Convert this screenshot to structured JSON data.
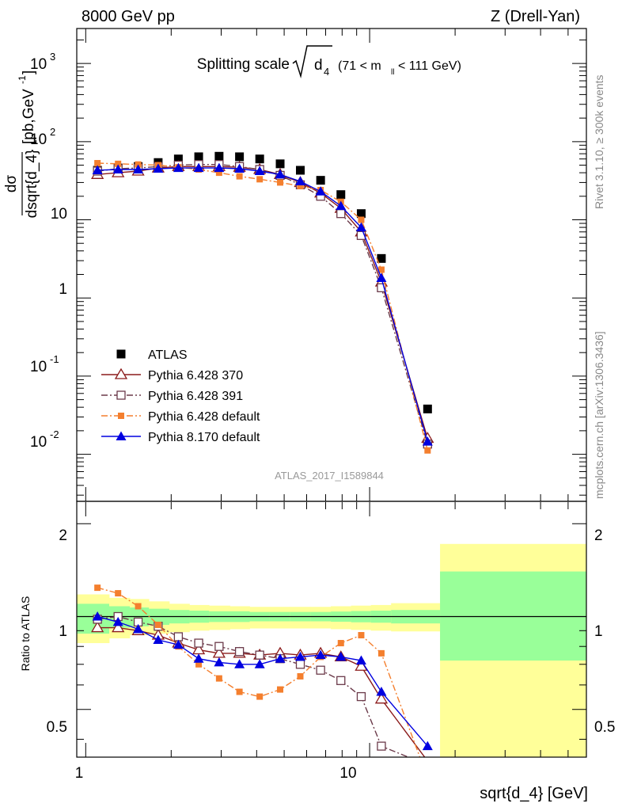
{
  "header": {
    "left": "8000 GeV pp",
    "right": "Z (Drell-Yan)"
  },
  "main_title": {
    "prefix": "Splitting scale",
    "symbol": "d",
    "symbol_sub": "4",
    "range_pre": "(71 < m",
    "range_sub": "ll",
    "range_post": " < 111 GeV)"
  },
  "ylabel": {
    "frac_num": "dσ",
    "frac_den": "dsqrt{d_4}",
    "units": "[pb,GeV",
    "units_sup": "-1",
    "units_close": "]"
  },
  "ratio_ylabel": "Ratio to ATLAS",
  "xlabel": "sqrt{d_4} [GeV]",
  "watermark": "ATLAS_2017_I1589844",
  "side_text": {
    "rivet": "Rivet 3.1.10, ≥ 300k events",
    "mcplots": "mcplots.cern.ch [arXiv:1306.3436]"
  },
  "tick_labels": {
    "main_y": [
      "10",
      "-2",
      "10",
      "-1",
      "1",
      "10",
      "10",
      "2",
      "10",
      "3"
    ],
    "ratio_y": [
      "0.5",
      "1",
      "2"
    ],
    "x": [
      "1",
      "10"
    ]
  },
  "chart_data": [
    {
      "type": "scatter",
      "panel": "main",
      "title": "Splitting scale √d4 (71 < mll < 111 GeV)",
      "xlabel": "sqrt{d_4} [GeV]",
      "ylabel": "dσ/dsqrt{d_4} [pb,GeV-1]",
      "xscale": "log",
      "yscale": "log",
      "xlim": [
        0.93,
        58
      ],
      "ylim": [
        0.0025,
        2800
      ],
      "legend_position": "bottom-left",
      "series": [
        {
          "name": "ATLAS",
          "color": "#000000",
          "marker": "filled-square",
          "line": "none",
          "x": [
            1.1,
            1.3,
            1.53,
            1.8,
            2.12,
            2.5,
            2.95,
            3.48,
            4.1,
            4.84,
            5.7,
            6.72,
            7.92,
            9.34,
            11.0,
            16.0,
            40.0
          ],
          "y": [
            43,
            46,
            48,
            54,
            60,
            64,
            65,
            64,
            60,
            52,
            43,
            32,
            21,
            12,
            3.2,
            0.038,
            null
          ]
        },
        {
          "name": "Pythia 6.428 370",
          "color": "#8b1a1a",
          "marker": "open-triangle",
          "line": "solid",
          "x": [
            1.1,
            1.3,
            1.53,
            1.8,
            2.12,
            2.5,
            2.95,
            3.48,
            4.1,
            4.84,
            5.7,
            6.72,
            7.92,
            9.34,
            11.0,
            16.0,
            40.0
          ],
          "y": [
            38,
            40,
            42,
            46,
            48,
            48,
            48,
            47,
            44,
            38,
            30,
            22,
            14,
            7.0,
            1.6,
            0.016,
            null
          ]
        },
        {
          "name": "Pythia 6.428 391",
          "color": "#6b3a4a",
          "marker": "open-square",
          "line": "dash-dot",
          "x": [
            1.1,
            1.3,
            1.53,
            1.8,
            2.12,
            2.5,
            2.95,
            3.48,
            4.1,
            4.84,
            5.7,
            6.72,
            7.92,
            9.34,
            11.0,
            16.0,
            40.0
          ],
          "y": [
            42,
            45,
            46,
            48,
            50,
            51,
            51,
            48,
            44,
            37,
            28,
            20,
            12,
            6.3,
            1.35,
            0.0135,
            null
          ]
        },
        {
          "name": "Pythia 6.428 default",
          "color": "#f47f2e",
          "marker": "filled-square-small",
          "line": "dash-dot",
          "x": [
            1.1,
            1.3,
            1.53,
            1.8,
            2.12,
            2.5,
            2.95,
            3.48,
            4.1,
            4.84,
            5.7,
            6.72,
            7.92,
            9.34,
            11.0,
            16.0,
            40.0
          ],
          "y": [
            53,
            52,
            51,
            50,
            47,
            44,
            40,
            36,
            33,
            30,
            27,
            24,
            17,
            10,
            2.3,
            0.0112,
            null
          ]
        },
        {
          "name": "Pythia 8.170 default",
          "color": "#0000e0",
          "marker": "filled-triangle",
          "line": "solid",
          "x": [
            1.1,
            1.3,
            1.53,
            1.8,
            2.12,
            2.5,
            2.95,
            3.48,
            4.1,
            4.84,
            5.7,
            6.72,
            7.92,
            9.34,
            11.0,
            16.0,
            40.0
          ],
          "y": [
            43,
            44,
            44,
            45,
            46,
            46,
            46,
            45,
            42,
            38,
            31,
            23,
            15,
            8.0,
            1.8,
            0.0145,
            null
          ]
        }
      ]
    },
    {
      "type": "line",
      "panel": "ratio",
      "ylabel": "Ratio to ATLAS",
      "xlabel": "sqrt{d_4} [GeV]",
      "xscale": "log",
      "yscale": "log",
      "xlim": [
        0.93,
        58
      ],
      "ylim": [
        0.35,
        2.35
      ],
      "bands": {
        "edges": [
          0.93,
          1.21,
          1.43,
          1.67,
          1.97,
          2.32,
          2.72,
          3.22,
          3.78,
          4.45,
          5.25,
          6.19,
          7.3,
          8.6,
          10.1,
          11.9,
          17.7,
          58
        ],
        "stat_lo": [
          0.88,
          0.92,
          0.93,
          0.94,
          0.95,
          0.955,
          0.96,
          0.96,
          0.965,
          0.965,
          0.965,
          0.965,
          0.962,
          0.958,
          0.955,
          0.95,
          0.72
        ],
        "stat_hi": [
          1.1,
          1.08,
          1.07,
          1.06,
          1.05,
          1.045,
          1.04,
          1.04,
          1.035,
          1.035,
          1.035,
          1.035,
          1.038,
          1.042,
          1.045,
          1.05,
          1.4
        ],
        "total_lo": [
          0.82,
          0.85,
          0.87,
          0.88,
          0.89,
          0.9,
          0.905,
          0.91,
          0.915,
          0.915,
          0.915,
          0.915,
          0.91,
          0.905,
          0.9,
          0.895,
          0.3
        ],
        "total_hi": [
          1.18,
          1.15,
          1.14,
          1.12,
          1.1,
          1.09,
          1.085,
          1.08,
          1.075,
          1.075,
          1.075,
          1.075,
          1.08,
          1.085,
          1.09,
          1.105,
          1.72
        ]
      },
      "series": [
        {
          "name": "Pythia 6.428 370",
          "color": "#8b1a1a",
          "marker": "open-triangle",
          "line": "solid",
          "x": [
            1.1,
            1.3,
            1.53,
            1.8,
            2.12,
            2.5,
            2.95,
            3.48,
            4.1,
            4.84,
            5.7,
            6.72,
            7.92,
            9.34,
            11.0,
            16.0,
            40.0
          ],
          "y": [
            0.92,
            0.92,
            0.9,
            0.87,
            0.82,
            0.78,
            0.76,
            0.76,
            0.75,
            0.76,
            0.75,
            0.76,
            0.74,
            0.69,
            0.54,
            0.34,
            null
          ]
        },
        {
          "name": "Pythia 6.428 391",
          "color": "#6b3a4a",
          "marker": "open-square",
          "line": "dash-dot",
          "x": [
            1.1,
            1.3,
            1.53,
            1.8,
            2.12,
            2.5,
            2.95,
            3.48,
            4.1,
            4.84,
            5.7,
            6.72,
            7.92,
            9.34,
            11.0,
            16.0,
            40.0
          ],
          "y": [
            0.98,
            1.0,
            0.96,
            0.93,
            0.86,
            0.82,
            0.8,
            0.77,
            0.75,
            0.73,
            0.7,
            0.67,
            0.62,
            0.55,
            0.38,
            0.33,
            null
          ]
        },
        {
          "name": "Pythia 6.428 default",
          "color": "#f47f2e",
          "marker": "filled-square-small",
          "line": "dash-dot",
          "x": [
            1.1,
            1.3,
            1.53,
            1.8,
            2.12,
            2.5,
            2.95,
            3.48,
            4.1,
            4.84,
            5.7,
            6.72,
            7.92,
            9.34,
            11.0,
            16.0,
            40.0
          ],
          "y": [
            1.24,
            1.19,
            1.08,
            0.94,
            0.8,
            0.7,
            0.63,
            0.57,
            0.55,
            0.58,
            0.64,
            0.74,
            0.82,
            0.87,
            0.76,
            0.3,
            null
          ]
        },
        {
          "name": "Pythia 8.170 default",
          "color": "#0000e0",
          "marker": "filled-triangle",
          "line": "solid",
          "x": [
            1.1,
            1.3,
            1.53,
            1.8,
            2.12,
            2.5,
            2.95,
            3.48,
            4.1,
            4.84,
            5.7,
            6.72,
            7.92,
            9.34,
            11.0,
            16.0,
            40.0
          ],
          "y": [
            1.0,
            0.96,
            0.91,
            0.84,
            0.81,
            0.73,
            0.71,
            0.7,
            0.7,
            0.73,
            0.74,
            0.75,
            0.74,
            0.72,
            0.57,
            0.38,
            null
          ]
        }
      ]
    }
  ]
}
